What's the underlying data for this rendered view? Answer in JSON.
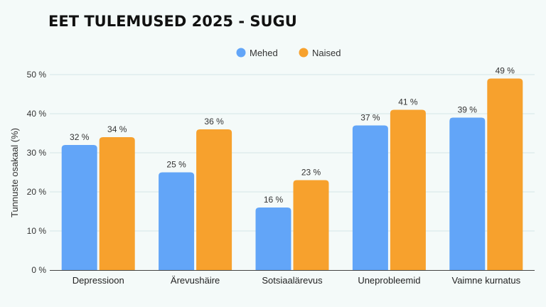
{
  "chart_data": {
    "type": "bar",
    "title": "EET TULEMUSED 2025 - SUGU",
    "ylabel": "Tunnuste osakaal (%)",
    "xlabel": "",
    "categories": [
      "Depressioon",
      "Ärevushäire",
      "Sotsiaalärevus",
      "Uneprobleemid",
      "Vaimne kurnatus"
    ],
    "series": [
      {
        "name": "Mehed",
        "color": "#62a5f8",
        "values": [
          32,
          25,
          16,
          37,
          39
        ],
        "labels": [
          "32 %",
          "25 %",
          "16 %",
          "37 %",
          "39 %"
        ]
      },
      {
        "name": "Naised",
        "color": "#f7a12d",
        "values": [
          34,
          36,
          23,
          41,
          49
        ],
        "labels": [
          "34 %",
          "36 %",
          "23 %",
          "41 %",
          "49 %"
        ]
      }
    ],
    "ylim": [
      0,
      50
    ],
    "yticks": [
      0,
      10,
      20,
      30,
      40,
      50
    ],
    "ytick_labels": [
      "0 %",
      "10 %",
      "20 %",
      "30 %",
      "40 %",
      "50 %"
    ],
    "grid": true,
    "legend_position": "top-center"
  }
}
